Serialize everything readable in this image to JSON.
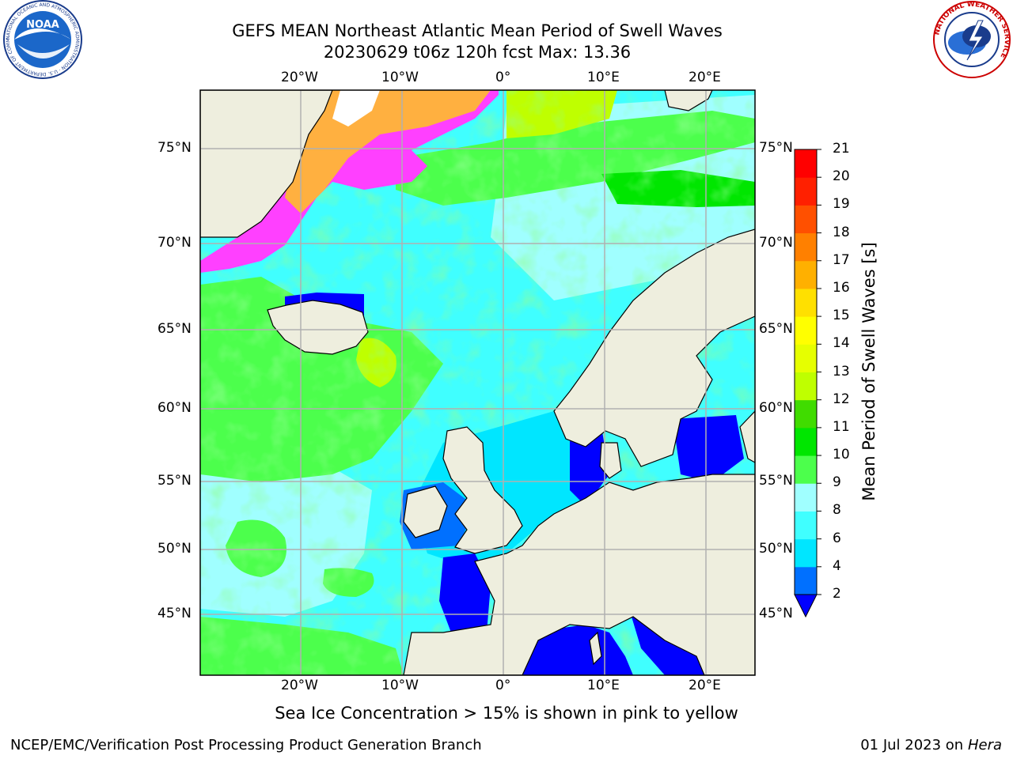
{
  "header": {
    "title_line1": "GEFS MEAN Northeast Atlantic Mean Period of Swell Waves",
    "title_line2": "20230629 t06z 120h fcst   Max: 13.36"
  },
  "logos": {
    "noaa_text": "NOAA",
    "noaa_ring_text": "NATIONAL OCEANIC AND ATMOSPHERIC ADMINISTRATION · U.S. DEPARTMENT OF COMMERCE",
    "nws_ring_text": "NATIONAL WEATHER SERVICE"
  },
  "map": {
    "lon_ticks": [
      "20°W",
      "10°W",
      "0°",
      "10°E",
      "20°E"
    ],
    "lat_ticks": [
      "75°N",
      "70°N",
      "65°N",
      "60°N",
      "55°N",
      "50°N",
      "45°N"
    ],
    "colors": {
      "land": "#eeeede",
      "grid": "#b0b0b0",
      "coast": "#000000"
    }
  },
  "colorbar": {
    "label": "Mean Period of Swell Waves [s]",
    "ticks": [
      "2",
      "4",
      "6",
      "8",
      "9",
      "10",
      "11",
      "12",
      "13",
      "14",
      "15",
      "16",
      "17",
      "18",
      "19",
      "20",
      "21"
    ],
    "colors": [
      "#0000ff",
      "#0070ff",
      "#00e6ff",
      "#40ffff",
      "#a0ffff",
      "#4cff4c",
      "#00e600",
      "#40dc00",
      "#bfff00",
      "#e6ff00",
      "#ffff00",
      "#ffe000",
      "#ffb000",
      "#ff8000",
      "#ff5000",
      "#ff2000",
      "#ff0000"
    ]
  },
  "notes": {
    "ice": "Sea Ice Concentration > 15% is shown in pink to yellow"
  },
  "footer": {
    "left": "NCEP/EMC/Verification Post Processing Product Generation Branch",
    "date": "01 Jul 2023 on ",
    "host": "Hera"
  }
}
